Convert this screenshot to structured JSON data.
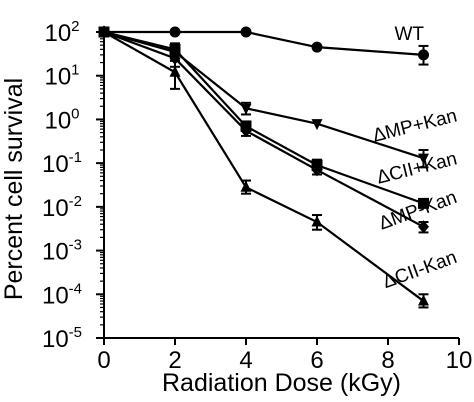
{
  "chart_data": {
    "type": "line",
    "xlabel": "Radiation Dose (kGy)",
    "ylabel": "Percent cell survival",
    "xlim": [
      0,
      10
    ],
    "xticks": [
      "0",
      "2",
      "4",
      "6",
      "8",
      "10"
    ],
    "ylim": [
      1e-05,
      100
    ],
    "yscale": "log",
    "yticks": [
      {
        "base": "10",
        "exp": "2"
      },
      {
        "base": "10",
        "exp": "1"
      },
      {
        "base": "10",
        "exp": "0"
      },
      {
        "base": "10",
        "exp": "-1"
      },
      {
        "base": "10",
        "exp": "-2"
      },
      {
        "base": "10",
        "exp": "-3"
      },
      {
        "base": "10",
        "exp": "-4"
      },
      {
        "base": "10",
        "exp": "-5"
      }
    ],
    "grid": false,
    "legend": "inline labels",
    "series": [
      {
        "name": "WT",
        "marker": "circle",
        "x": [
          0,
          2,
          4,
          6,
          9
        ],
        "y": [
          100,
          100,
          100,
          45,
          30
        ],
        "err_lo": [
          null,
          null,
          null,
          null,
          18
        ],
        "err_hi": [
          null,
          null,
          null,
          null,
          48
        ]
      },
      {
        "name": "ΔMP+Kan",
        "marker": "triangle-down",
        "x": [
          0,
          2,
          4,
          6,
          9
        ],
        "y": [
          100,
          35,
          1.8,
          0.8,
          0.13
        ],
        "err_lo": [
          null,
          22,
          1.3,
          null,
          0.08
        ],
        "err_hi": [
          null,
          50,
          2.4,
          null,
          0.2
        ]
      },
      {
        "name": "ΔCII+Kan",
        "marker": "square",
        "x": [
          0,
          2,
          4,
          6,
          9
        ],
        "y": [
          100,
          40,
          0.7,
          0.09,
          0.012
        ],
        "err_lo": [
          null,
          30,
          0.55,
          0.07,
          null
        ],
        "err_hi": [
          null,
          55,
          0.9,
          0.12,
          null
        ]
      },
      {
        "name": "ΔMP-Kan",
        "marker": "diamond",
        "x": [
          0,
          2,
          4,
          6,
          9
        ],
        "y": [
          100,
          25,
          0.55,
          0.07,
          0.0035
        ],
        "err_lo": [
          null,
          16,
          0.42,
          0.055,
          0.0026
        ],
        "err_hi": [
          null,
          35,
          0.7,
          0.09,
          0.0045
        ]
      },
      {
        "name": "ΔCII-Kan",
        "marker": "triangle-up",
        "x": [
          0,
          2,
          4,
          6,
          9
        ],
        "y": [
          100,
          12,
          0.028,
          0.0045,
          7e-05
        ],
        "err_lo": [
          null,
          5,
          0.02,
          0.003,
          5e-05
        ],
        "err_hi": [
          null,
          22,
          0.04,
          0.0065,
          0.0001
        ]
      }
    ]
  }
}
